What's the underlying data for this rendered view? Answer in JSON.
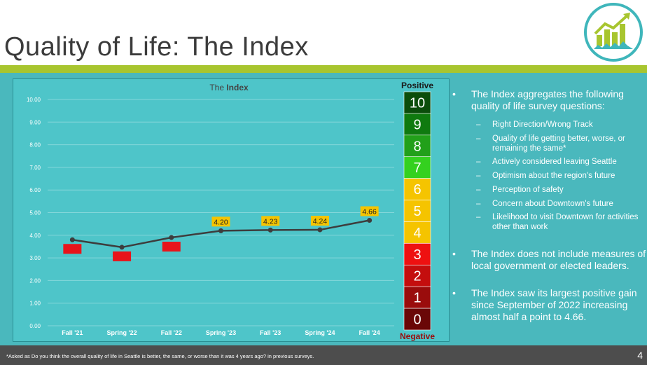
{
  "page": {
    "title": "Quality of Life: The Index",
    "page_number": "4",
    "footnote": "*Asked as Do you think the overall quality of life in Seattle is better, the same, or worse than it was 4 years ago? in previous surveys.",
    "logo_icon": "rising-bar-chart-skyline-icon"
  },
  "chart_data": {
    "type": "line",
    "title": "The Index",
    "title_parts": [
      "The ",
      "Index"
    ],
    "categories": [
      "Fall '21",
      "Spring '22",
      "Fall '22",
      "Spring '23",
      "Fall '23",
      "Spring '24",
      "Fall '24"
    ],
    "values": [
      3.8,
      3.47,
      3.9,
      4.2,
      4.23,
      4.24,
      4.66
    ],
    "data_labels": [
      "3.80",
      "3.47",
      "3.90",
      "4.20",
      "4.23",
      "4.24",
      "4.66"
    ],
    "label_colors": [
      "#e8141b",
      "#e8141b",
      "#e8141b",
      "#f5c400",
      "#f5c400",
      "#f5c400",
      "#f5c400"
    ],
    "label_text_colors": [
      "#e8141b",
      "#e8141b",
      "#e8141b",
      "#222222",
      "#222222",
      "#222222",
      "#222222"
    ],
    "ylim": [
      0,
      10
    ],
    "yticks": [
      "0.00",
      "1.00",
      "2.00",
      "3.00",
      "4.00",
      "5.00",
      "6.00",
      "7.00",
      "8.00",
      "9.00",
      "10.00"
    ],
    "grid": true,
    "line_color": "#3d3d3d"
  },
  "scale": {
    "top_label": "Positive",
    "bottom_label": "Negative",
    "levels": [
      {
        "value": "10",
        "color": "#0b4d0b"
      },
      {
        "value": "9",
        "color": "#0f7a0f"
      },
      {
        "value": "8",
        "color": "#22a01a"
      },
      {
        "value": "7",
        "color": "#34d11f"
      },
      {
        "value": "6",
        "color": "#f5c400"
      },
      {
        "value": "5",
        "color": "#f5c400"
      },
      {
        "value": "4",
        "color": "#f5c400"
      },
      {
        "value": "3",
        "color": "#ee1111"
      },
      {
        "value": "2",
        "color": "#c40e0e"
      },
      {
        "value": "1",
        "color": "#9a0c0c"
      },
      {
        "value": "0",
        "color": "#6a0707"
      }
    ]
  },
  "bullets": [
    {
      "text": "The Index aggregates the following quality of life survey questions:"
    },
    {
      "text": "Right Direction/Wrong Track"
    },
    {
      "text": "Quality of life getting better, worse, or remaining the same*"
    },
    {
      "text": "Actively considered leaving Seattle"
    },
    {
      "text": "Optimism about the region's future"
    },
    {
      "text": "Perception of safety"
    },
    {
      "text": "Concern about Downtown's future"
    },
    {
      "text": "Likelihood to visit Downtown for activities other than work"
    },
    {
      "text": "The Index does not include measures of local government or elected leaders."
    },
    {
      "text": "The Index saw its largest positive gain since September of 2022 increasing almost half a point to 4.66."
    }
  ],
  "bullet_marks": {
    "main": "•",
    "sub": "–"
  }
}
